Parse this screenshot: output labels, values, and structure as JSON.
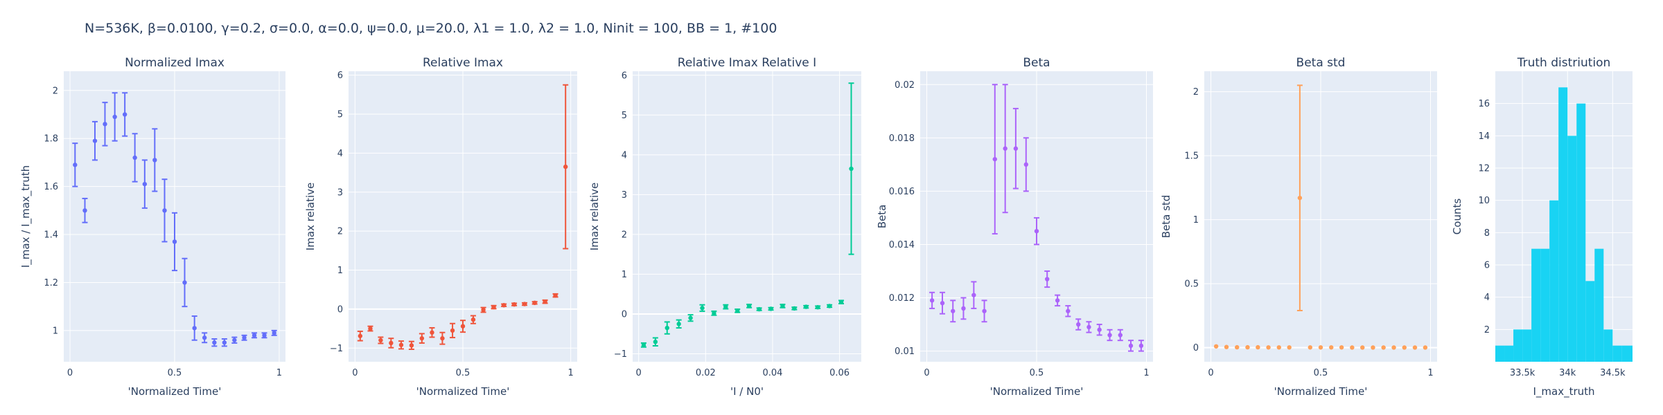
{
  "suptitle": "N=536K, β=0.0100, γ=0.2, σ=0.0,  α=0.0, ψ=0.0, μ=20.0, λ1 = 1.0, λ2 = 1.0, Ninit = 100, BB = 1, #100",
  "colors": {
    "plot_bg": "#e5ecf6",
    "grid": "#ffffff",
    "text": "#2a3f5f",
    "normalized_imax": "#636efa",
    "relative_imax": "#ef553b",
    "relative_imax_relative_i": "#00cc96",
    "beta": "#ab63fa",
    "beta_std": "#ffa15a",
    "truth": "#19d3f3"
  },
  "chart_data": [
    {
      "type": "scatter",
      "title": "Normalized Imax",
      "xlabel": "'Normalized Time'",
      "ylabel": "I_max / I_max_truth",
      "xlim": [
        -0.03,
        1.03
      ],
      "ylim": [
        0.87,
        2.08
      ],
      "xticks": [
        0,
        0.5,
        1
      ],
      "xticklabels": [
        "0",
        "0.5",
        "1"
      ],
      "yticks": [
        1,
        1.2,
        1.4,
        1.6,
        1.8,
        2
      ],
      "yticklabels": [
        "1",
        "1.2",
        "1.4",
        "1.6",
        "1.8",
        "2"
      ],
      "color_key": "normalized_imax",
      "x": [
        0.024,
        0.071,
        0.119,
        0.167,
        0.214,
        0.262,
        0.31,
        0.357,
        0.405,
        0.452,
        0.5,
        0.548,
        0.595,
        0.643,
        0.69,
        0.738,
        0.786,
        0.833,
        0.881,
        0.929,
        0.976
      ],
      "y": [
        1.69,
        1.5,
        1.79,
        1.86,
        1.89,
        1.9,
        1.72,
        1.61,
        1.71,
        1.5,
        1.37,
        1.2,
        1.01,
        0.97,
        0.95,
        0.95,
        0.96,
        0.97,
        0.98,
        0.98,
        0.99
      ],
      "err": [
        0.09,
        0.05,
        0.08,
        0.09,
        0.1,
        0.09,
        0.1,
        0.1,
        0.13,
        0.13,
        0.12,
        0.1,
        0.05,
        0.02,
        0.015,
        0.015,
        0.012,
        0.01,
        0.01,
        0.01,
        0.01
      ]
    },
    {
      "type": "scatter",
      "title": "Relative Imax",
      "xlabel": "'Normalized Time'",
      "ylabel": "Imax relative",
      "xlim": [
        -0.03,
        1.03
      ],
      "ylim": [
        -1.35,
        6.1
      ],
      "xticks": [
        0,
        0.5,
        1
      ],
      "xticklabels": [
        "0",
        "0.5",
        "1"
      ],
      "yticks": [
        -1,
        0,
        1,
        2,
        3,
        4,
        5,
        6
      ],
      "yticklabels": [
        "−1",
        "0",
        "1",
        "2",
        "3",
        "4",
        "5",
        "6"
      ],
      "color_key": "relative_imax",
      "x": [
        0.024,
        0.071,
        0.119,
        0.167,
        0.214,
        0.262,
        0.31,
        0.357,
        0.405,
        0.452,
        0.5,
        0.548,
        0.595,
        0.643,
        0.69,
        0.738,
        0.786,
        0.833,
        0.881,
        0.929,
        0.976
      ],
      "y": [
        -0.69,
        -0.5,
        -0.8,
        -0.87,
        -0.92,
        -0.93,
        -0.75,
        -0.6,
        -0.75,
        -0.55,
        -0.44,
        -0.27,
        -0.02,
        0.05,
        0.1,
        0.12,
        0.13,
        0.16,
        0.19,
        0.35,
        3.65
      ],
      "err": [
        0.12,
        0.06,
        0.08,
        0.12,
        0.1,
        0.1,
        0.12,
        0.12,
        0.15,
        0.18,
        0.15,
        0.1,
        0.06,
        0.04,
        0.03,
        0.03,
        0.03,
        0.03,
        0.04,
        0.04,
        2.1
      ]
    },
    {
      "type": "scatter",
      "title": "Relative Imax Relative I",
      "xlabel": "'I / N0'",
      "ylabel": "Imax relative",
      "xlim": [
        -0.0018,
        0.0665
      ],
      "ylim": [
        -1.2,
        6.1
      ],
      "xticks": [
        0,
        0.02,
        0.04,
        0.06
      ],
      "xticklabels": [
        "0",
        "0.02",
        "0.04",
        "0.06"
      ],
      "yticks": [
        -1,
        0,
        1,
        2,
        3,
        4,
        5,
        6
      ],
      "yticklabels": [
        "−1",
        "0",
        "1",
        "2",
        "3",
        "4",
        "5",
        "6"
      ],
      "color_key": "relative_imax_relative_i",
      "x": [
        0.0015,
        0.005,
        0.0085,
        0.012,
        0.0155,
        0.019,
        0.0225,
        0.026,
        0.0295,
        0.033,
        0.036,
        0.0395,
        0.043,
        0.0465,
        0.05,
        0.0535,
        0.057,
        0.0605,
        0.0635
      ],
      "y": [
        -0.78,
        -0.7,
        -0.35,
        -0.25,
        -0.1,
        0.15,
        0.02,
        0.18,
        0.08,
        0.2,
        0.12,
        0.13,
        0.2,
        0.14,
        0.18,
        0.17,
        0.2,
        0.3,
        3.65
      ],
      "err": [
        0.05,
        0.1,
        0.15,
        0.1,
        0.08,
        0.08,
        0.05,
        0.05,
        0.04,
        0.04,
        0.03,
        0.03,
        0.04,
        0.03,
        0.03,
        0.03,
        0.03,
        0.04,
        2.15
      ]
    },
    {
      "type": "scatter",
      "title": "Beta",
      "xlabel": "'Normalized Time'",
      "ylabel": "Beta",
      "xlim": [
        -0.03,
        1.03
      ],
      "ylim": [
        0.0096,
        0.0205
      ],
      "xticks": [
        0,
        0.5,
        1
      ],
      "xticklabels": [
        "0",
        "0.5",
        "1"
      ],
      "yticks": [
        0.01,
        0.012,
        0.014,
        0.016,
        0.018,
        0.02
      ],
      "yticklabels": [
        "0.01",
        "0.012",
        "0.014",
        "0.016",
        "0.018",
        "0.02"
      ],
      "color_key": "beta",
      "x": [
        0.024,
        0.071,
        0.119,
        0.167,
        0.214,
        0.262,
        0.31,
        0.357,
        0.405,
        0.452,
        0.5,
        0.548,
        0.595,
        0.643,
        0.69,
        0.738,
        0.786,
        0.833,
        0.881,
        0.929,
        0.976
      ],
      "y": [
        0.0119,
        0.0118,
        0.0115,
        0.0116,
        0.0121,
        0.0115,
        0.0172,
        0.0176,
        0.0176,
        0.017,
        0.0145,
        0.0127,
        0.0119,
        0.0115,
        0.011,
        0.0109,
        0.0108,
        0.0106,
        0.0106,
        0.0102,
        0.0102
      ],
      "err": [
        0.0003,
        0.0004,
        0.0004,
        0.0004,
        0.0005,
        0.0004,
        0.0028,
        0.0024,
        0.0015,
        0.001,
        0.0005,
        0.0003,
        0.0002,
        0.0002,
        0.0002,
        0.0002,
        0.0002,
        0.0002,
        0.0002,
        0.0002,
        0.0002
      ]
    },
    {
      "type": "scatter",
      "title": "Beta std",
      "xlabel": "'Normalized Time'",
      "ylabel": "Beta std",
      "xlim": [
        -0.03,
        1.03
      ],
      "ylim": [
        -0.11,
        2.16
      ],
      "xticks": [
        0,
        0.5,
        1
      ],
      "xticklabels": [
        "0",
        "0.5",
        "1"
      ],
      "yticks": [
        0,
        0.5,
        1,
        1.5,
        2
      ],
      "yticklabels": [
        "0",
        "0.5",
        "1",
        "1.5",
        "2"
      ],
      "color_key": "beta_std",
      "x": [
        0.024,
        0.071,
        0.119,
        0.167,
        0.214,
        0.262,
        0.31,
        0.357,
        0.405,
        0.452,
        0.5,
        0.548,
        0.595,
        0.643,
        0.69,
        0.738,
        0.786,
        0.833,
        0.881,
        0.929,
        0.976
      ],
      "y": [
        0.01,
        0.005,
        0.003,
        0.003,
        0.003,
        0.002,
        0.002,
        0.002,
        1.17,
        0.002,
        0.002,
        0.002,
        0.002,
        0.001,
        0.001,
        0.001,
        0.001,
        0.001,
        0.001,
        0.001,
        0.001
      ],
      "err": [
        0,
        0,
        0,
        0,
        0,
        0,
        0,
        0,
        0.88,
        0,
        0,
        0,
        0,
        0,
        0,
        0,
        0,
        0,
        0,
        0,
        0
      ]
    },
    {
      "type": "bar",
      "title": "Truth distriution",
      "xlabel": "I_max_truth",
      "ylabel": "Counts",
      "xlim": [
        33200,
        34720
      ],
      "ylim": [
        0,
        18
      ],
      "xticks": [
        33500,
        34000,
        34500
      ],
      "xticklabels": [
        "33.5k",
        "34k",
        "34.5k"
      ],
      "yticks": [
        2,
        4,
        6,
        8,
        10,
        12,
        14,
        16
      ],
      "yticklabels": [
        "2",
        "4",
        "6",
        "8",
        "10",
        "12",
        "14",
        "16"
      ],
      "color_key": "truth",
      "bin_edges": [
        33200,
        33300,
        33400,
        33500,
        33600,
        33700,
        33800,
        33900,
        34000,
        34100,
        34200,
        34300,
        34400,
        34500,
        34600,
        34720
      ],
      "values": [
        1,
        1,
        2,
        2,
        7,
        7,
        10,
        17,
        14,
        16,
        5,
        7,
        2,
        1,
        1
      ]
    }
  ]
}
